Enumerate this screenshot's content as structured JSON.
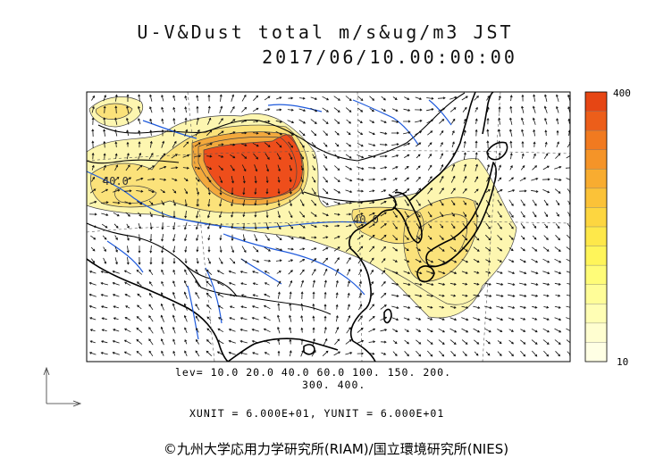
{
  "title": {
    "line1": "U-V&Dust total m/s&ug/m3 JST",
    "line2": "2017/06/10.00:00:00"
  },
  "colorbar": {
    "max_label": "400",
    "min_label": "10",
    "colors": [
      "#e64614",
      "#ec5e1a",
      "#f17a20",
      "#f59428",
      "#f8ac30",
      "#fbc238",
      "#fdd640",
      "#fee84a",
      "#fff55a",
      "#fffc78",
      "#fffd98",
      "#fffeb4",
      "#fffed0",
      "#ffffe4"
    ]
  },
  "contour_labels": {
    "west": "40.0",
    "korea": "40.0"
  },
  "levels": {
    "line1": "lev= 10.0 20.0 40.0 60.0 100. 150. 200.",
    "line2": "300. 400."
  },
  "units": "XUNIT = 6.000E+01, YUNIT = 6.000E+01",
  "copyright": "©九州大学応用力学研究所(RIAM)/国立環境研究所(NIES)",
  "style": {
    "coast": "#000000",
    "river": "#1e5adc",
    "dust_light": "#fdf6b0",
    "dust_mid": "#fbe27a",
    "dust_high": "#f3a93c",
    "dust_peak": "#ee4e1b"
  }
}
